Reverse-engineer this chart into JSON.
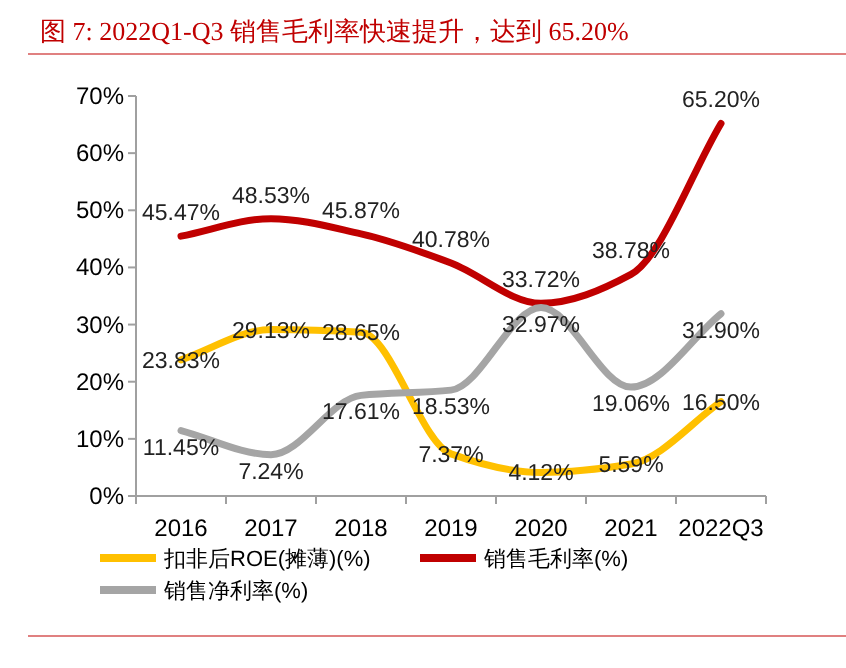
{
  "chart_data": {
    "type": "line",
    "title": "图 7:  2022Q1-Q3 销售毛利率快速提升，达到 65.20%",
    "categories": [
      "2016",
      "2017",
      "2018",
      "2019",
      "2020",
      "2021",
      "2022Q3"
    ],
    "series": [
      {
        "name": "扣非后ROE(摊薄)(%)",
        "color": "#ffc000",
        "values": [
          23.83,
          29.13,
          28.65,
          7.37,
          4.12,
          5.59,
          16.5
        ],
        "value_labels": [
          "23.83%",
          "29.13%",
          "28.65%",
          "7.37%",
          "4.12%",
          "5.59%",
          "16.50%"
        ]
      },
      {
        "name": "销售毛利率(%)",
        "color": "#c00000",
        "values": [
          45.47,
          48.53,
          45.87,
          40.78,
          33.72,
          38.78,
          65.2
        ],
        "value_labels": [
          "45.47%",
          "48.53%",
          "45.87%",
          "40.78%",
          "33.72%",
          "38.78%",
          "65.20%"
        ]
      },
      {
        "name": "销售净利率(%)",
        "color": "#a5a5a5",
        "values": [
          11.45,
          7.24,
          17.61,
          18.53,
          32.97,
          19.06,
          31.9
        ],
        "value_labels": [
          "11.45%",
          "7.24%",
          "17.61%",
          "18.53%",
          "32.97%",
          "19.06%",
          "31.90%"
        ]
      }
    ],
    "ylim": [
      0,
      70
    ],
    "yticks": [
      {
        "value": 0,
        "label": "0%"
      },
      {
        "value": 10,
        "label": "10%"
      },
      {
        "value": 20,
        "label": "20%"
      },
      {
        "value": 30,
        "label": "30%"
      },
      {
        "value": 40,
        "label": "40%"
      },
      {
        "value": 50,
        "label": "50%"
      },
      {
        "value": 60,
        "label": "60%"
      },
      {
        "value": 70,
        "label": "70%"
      }
    ],
    "grid": false,
    "legend": "bottom",
    "marker": "none",
    "line_style": "solid"
  }
}
